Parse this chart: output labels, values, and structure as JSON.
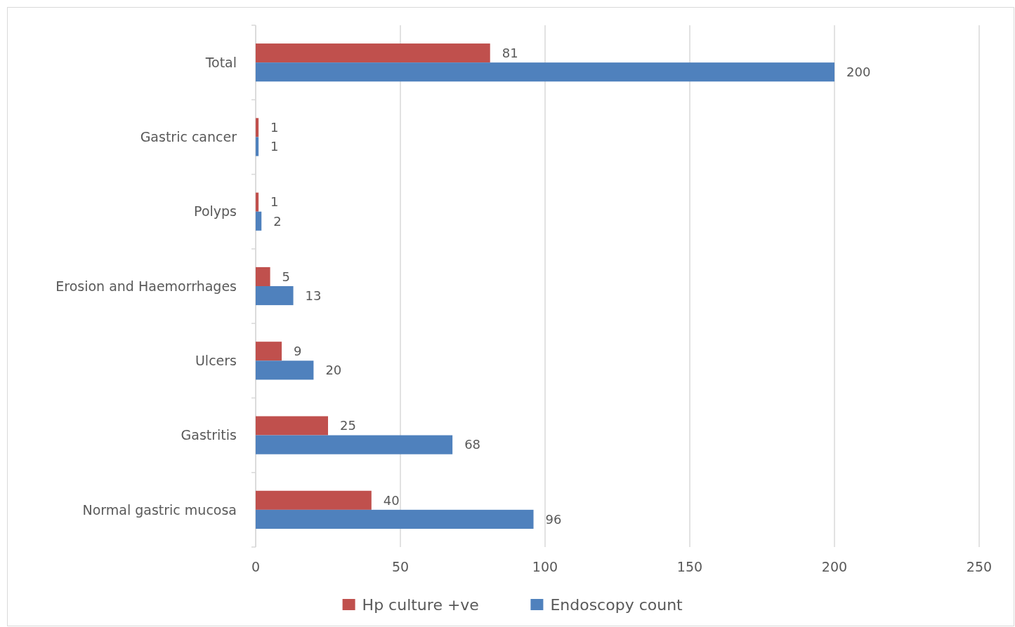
{
  "chart_data": {
    "type": "bar",
    "orientation": "horizontal",
    "categories": [
      "Total",
      "Gastric cancer",
      "Polyps",
      "Erosion and Haemorrhages",
      "Ulcers",
      "Gastritis",
      "Normal gastric mucosa"
    ],
    "series": [
      {
        "name": "Hp culture +ve",
        "color": "#c0504d",
        "values": [
          81,
          1,
          1,
          5,
          9,
          25,
          40
        ]
      },
      {
        "name": "Endoscopy count",
        "color": "#4f81bd",
        "values": [
          200,
          1,
          2,
          13,
          20,
          68,
          96
        ]
      }
    ],
    "xlim": [
      0,
      250
    ],
    "xticks": [
      0,
      50,
      100,
      150,
      200,
      250
    ],
    "grid": "x",
    "legend": "bottom",
    "data_labels": true
  }
}
